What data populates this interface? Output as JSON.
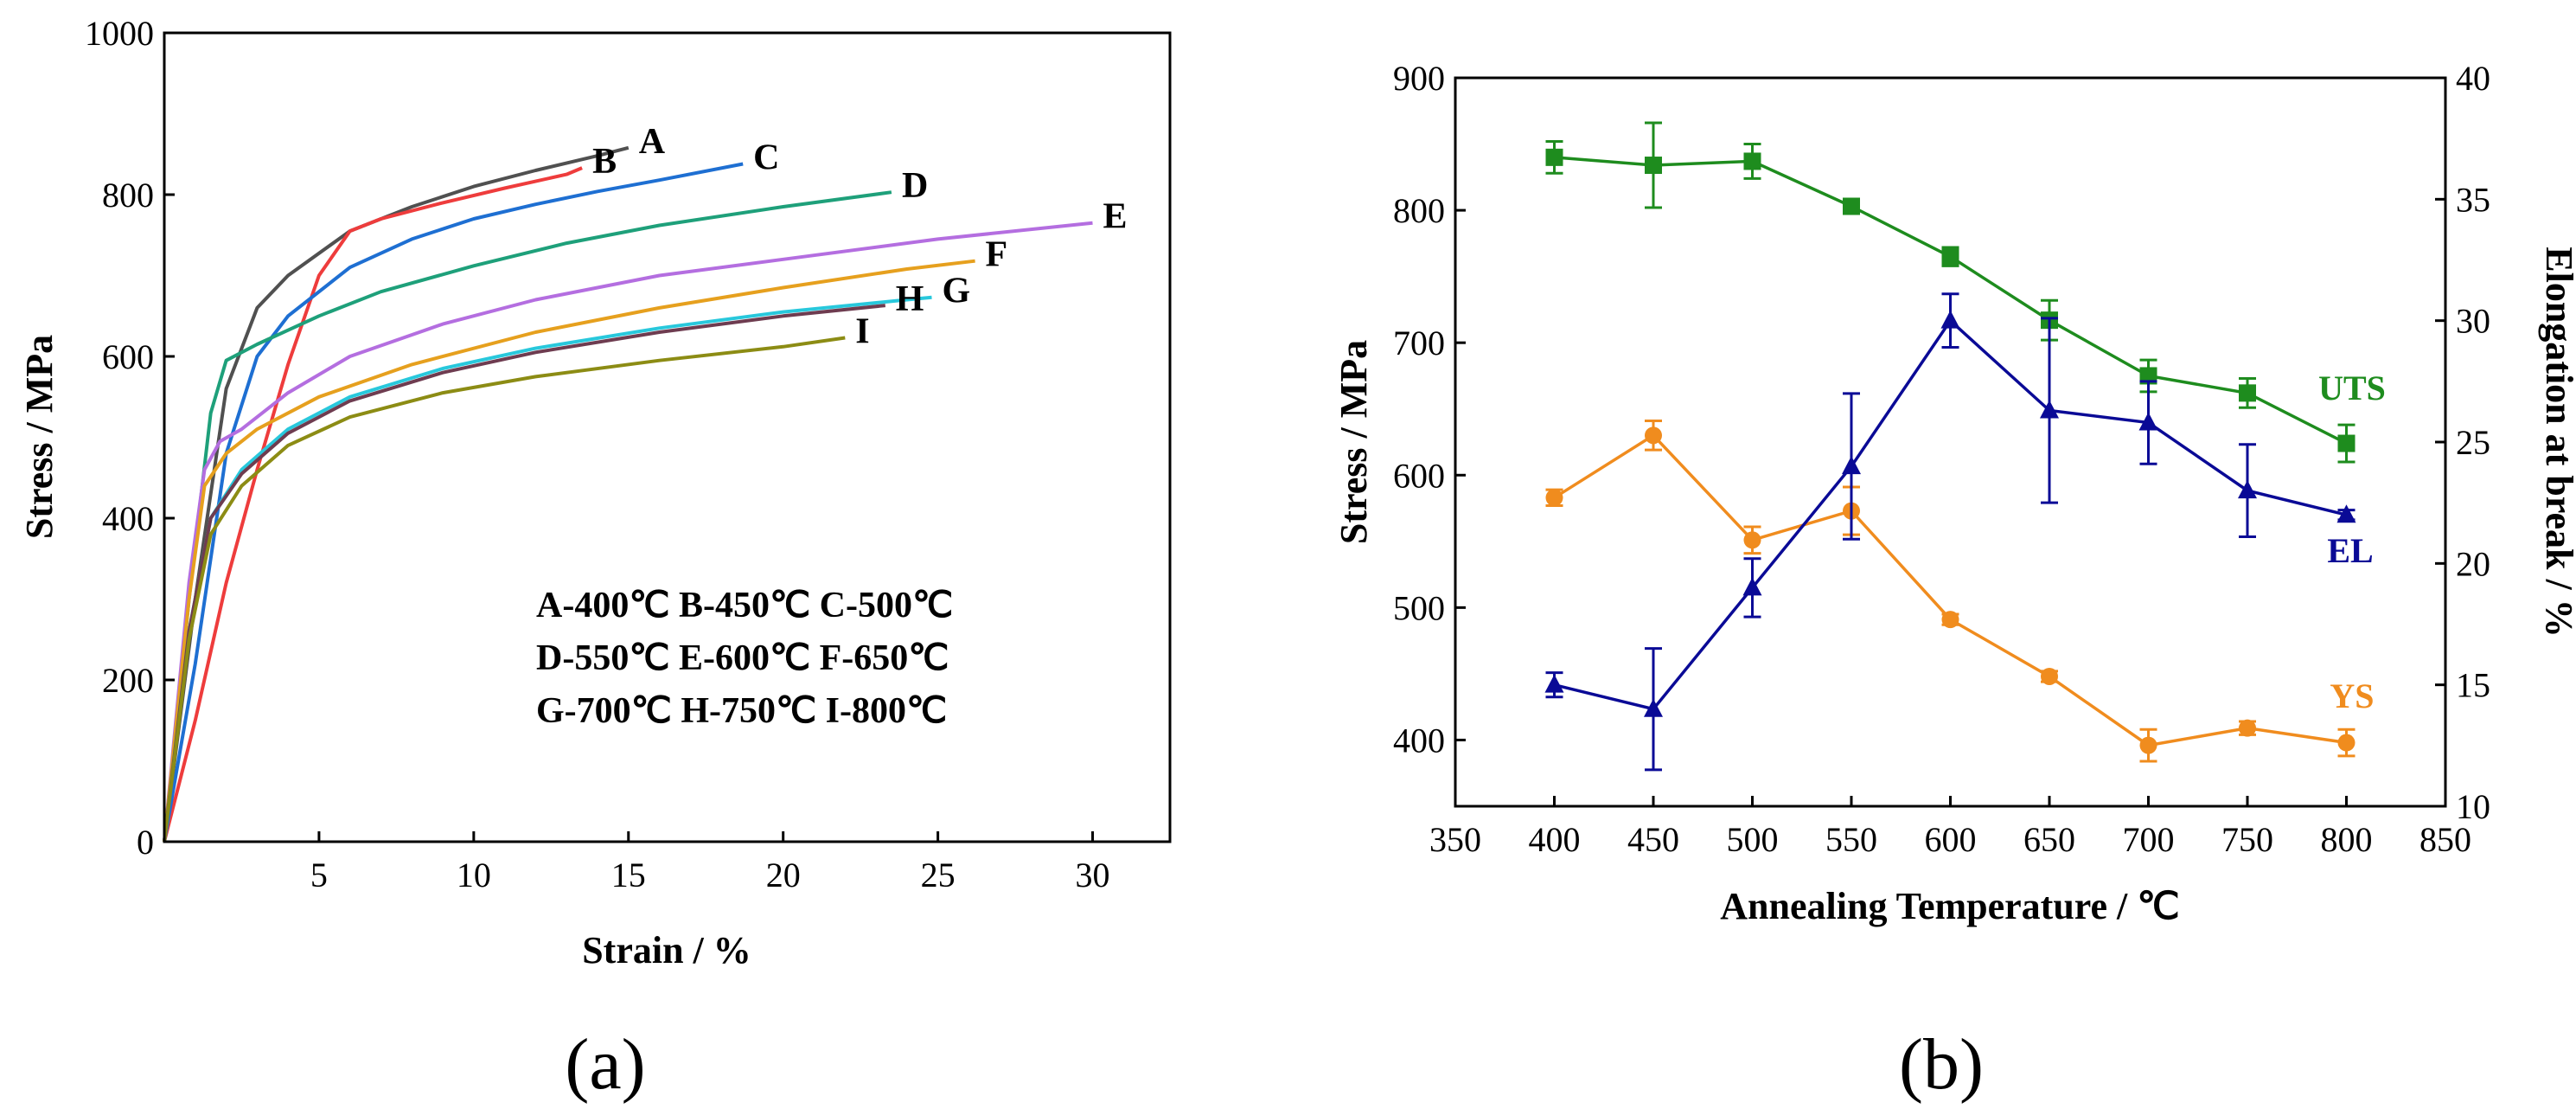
{
  "chart_data": [
    {
      "type": "line",
      "panel_label": "(a)",
      "xlabel": "Strain / %",
      "ylabel": "Stress / MPa",
      "xlim": [
        0,
        32.5
      ],
      "ylim": [
        0,
        1000
      ],
      "xticks": [
        5,
        10,
        15,
        20,
        25,
        30
      ],
      "yticks": [
        0,
        200,
        400,
        600,
        800,
        1000
      ],
      "legend_text": [
        "A-400℃ B-450℃ C-500℃",
        "D-550℃ E-600℃ F-650℃",
        "G-700℃ H-750℃ I-800℃"
      ],
      "series": [
        {
          "name": "A",
          "color": "#505050",
          "x": [
            0,
            1.0,
            2.0,
            3.0,
            4.0,
            6.0,
            8.0,
            10.0,
            12.0,
            14.0,
            15.0
          ],
          "y": [
            0,
            300,
            560,
            660,
            700,
            755,
            785,
            810,
            830,
            848,
            858
          ]
        },
        {
          "name": "B",
          "color": "#ee3c3c",
          "x": [
            0,
            1.0,
            2.0,
            3.0,
            4.0,
            5.0,
            6.0,
            7.0,
            9.0,
            11.0,
            13.0,
            13.5
          ],
          "y": [
            0,
            150,
            320,
            460,
            590,
            700,
            755,
            770,
            790,
            808,
            825,
            833
          ]
        },
        {
          "name": "C",
          "color": "#1e6fd2",
          "x": [
            0,
            1.0,
            2.0,
            3.0,
            4.0,
            6.0,
            8.0,
            10.0,
            12.0,
            14.0,
            16.0,
            18.7
          ],
          "y": [
            0,
            220,
            480,
            600,
            650,
            710,
            745,
            770,
            788,
            804,
            818,
            838
          ]
        },
        {
          "name": "D",
          "color": "#1ea07a",
          "x": [
            0,
            0.8,
            1.5,
            2.0,
            3.0,
            5.0,
            7.0,
            10.0,
            13.0,
            16.0,
            20.0,
            23.5
          ],
          "y": [
            0,
            300,
            530,
            595,
            615,
            650,
            680,
            712,
            740,
            762,
            785,
            803
          ]
        },
        {
          "name": "E",
          "color": "#b46ee0",
          "x": [
            0,
            0.8,
            1.3,
            1.8,
            2.5,
            4.0,
            6.0,
            9.0,
            12.0,
            16.0,
            20.0,
            25.0,
            30.0
          ],
          "y": [
            0,
            320,
            460,
            495,
            510,
            555,
            600,
            640,
            670,
            700,
            720,
            745,
            765
          ]
        },
        {
          "name": "F",
          "color": "#e6a01e",
          "x": [
            0,
            0.8,
            1.3,
            2.0,
            3.0,
            5.0,
            8.0,
            12.0,
            16.0,
            20.0,
            24.0,
            26.2
          ],
          "y": [
            0,
            300,
            440,
            480,
            510,
            550,
            590,
            630,
            660,
            685,
            708,
            718
          ]
        },
        {
          "name": "G",
          "color": "#28c8dc",
          "x": [
            0,
            0.8,
            1.5,
            2.5,
            4.0,
            6.0,
            9.0,
            12.0,
            16.0,
            20.0,
            24.0,
            24.8
          ],
          "y": [
            0,
            260,
            400,
            460,
            510,
            550,
            585,
            610,
            635,
            655,
            670,
            673
          ]
        },
        {
          "name": "H",
          "color": "#6e3c50",
          "x": [
            0,
            0.8,
            1.5,
            2.5,
            4.0,
            6.0,
            9.0,
            12.0,
            16.0,
            20.0,
            23.3
          ],
          "y": [
            0,
            260,
            400,
            455,
            505,
            545,
            580,
            605,
            630,
            650,
            663
          ]
        },
        {
          "name": "I",
          "color": "#8c8c14",
          "x": [
            0,
            0.8,
            1.5,
            2.5,
            4.0,
            6.0,
            9.0,
            12.0,
            16.0,
            20.0,
            22.0
          ],
          "y": [
            0,
            250,
            380,
            440,
            490,
            525,
            555,
            575,
            595,
            612,
            623
          ]
        }
      ]
    },
    {
      "type": "line",
      "panel_label": "(b)",
      "xlabel": "Annealing Temperature / ℃",
      "ylabel": "Stress / MPa",
      "y2label": "Elongation at break / %",
      "xlim": [
        350,
        850
      ],
      "ylim": [
        350,
        900
      ],
      "y2lim": [
        10,
        40
      ],
      "xticks": [
        350,
        400,
        450,
        500,
        550,
        600,
        650,
        700,
        750,
        800,
        850
      ],
      "yticks": [
        400,
        500,
        600,
        700,
        800,
        900
      ],
      "y2ticks": [
        10,
        15,
        20,
        25,
        30,
        35,
        40
      ],
      "x": [
        400,
        450,
        500,
        550,
        600,
        650,
        700,
        750,
        800
      ],
      "series": [
        {
          "name": "UTS",
          "color": "#1e8c1e",
          "marker": "square",
          "axis": "left",
          "values": [
            840,
            834,
            837,
            803,
            765,
            717,
            675,
            662,
            624
          ],
          "err": [
            12,
            32,
            13,
            4,
            7,
            15,
            12,
            11,
            14
          ]
        },
        {
          "name": "YS",
          "color": "#f08c1e",
          "marker": "circle",
          "axis": "left",
          "values": [
            583,
            630,
            551,
            573,
            491,
            448,
            396,
            409,
            398
          ],
          "err": [
            6,
            11,
            10,
            18,
            4,
            4,
            12,
            5,
            10
          ]
        },
        {
          "name": "EL",
          "color": "#0a0a96",
          "marker": "triangle",
          "axis": "right",
          "values": [
            15.0,
            14.0,
            19.0,
            24.0,
            30.0,
            26.3,
            25.8,
            23.0,
            22.0
          ],
          "err": [
            0.5,
            2.5,
            1.2,
            3.0,
            1.1,
            3.8,
            1.7,
            1.9,
            0.2
          ]
        }
      ]
    }
  ]
}
